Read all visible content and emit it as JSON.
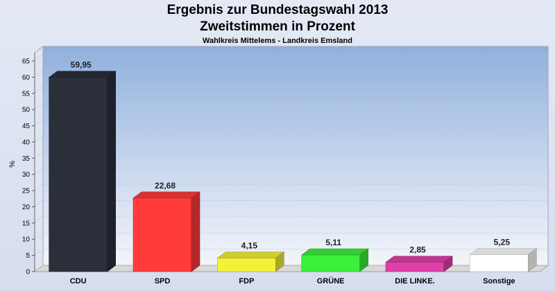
{
  "chart_data": {
    "type": "bar",
    "title": "Ergebnis zur Bundestagswahl 2013",
    "subtitle_line": "Zweitstimmen in Prozent",
    "subtitle": "Wahlkreis Mittelems - Landkreis Emsland",
    "ylabel": "%",
    "xlabel": "",
    "ylim": [
      0,
      65
    ],
    "yticks": [
      0,
      5,
      10,
      15,
      20,
      25,
      30,
      35,
      40,
      45,
      50,
      55,
      60,
      65
    ],
    "categories": [
      "CDU",
      "SPD",
      "FDP",
      "GRÜNE",
      "DIE LINKE.",
      "Sonstige"
    ],
    "values": [
      59.95,
      22.68,
      4.15,
      5.11,
      2.85,
      5.25
    ],
    "value_labels": [
      "59,95",
      "22,68",
      "4,15",
      "5,11",
      "2,85",
      "5,25"
    ],
    "colors": [
      "#2b2f3a",
      "#ff3b3b",
      "#f2f23a",
      "#3cf03c",
      "#e040a8",
      "#ffffff"
    ],
    "grid": true,
    "legend": "none"
  }
}
